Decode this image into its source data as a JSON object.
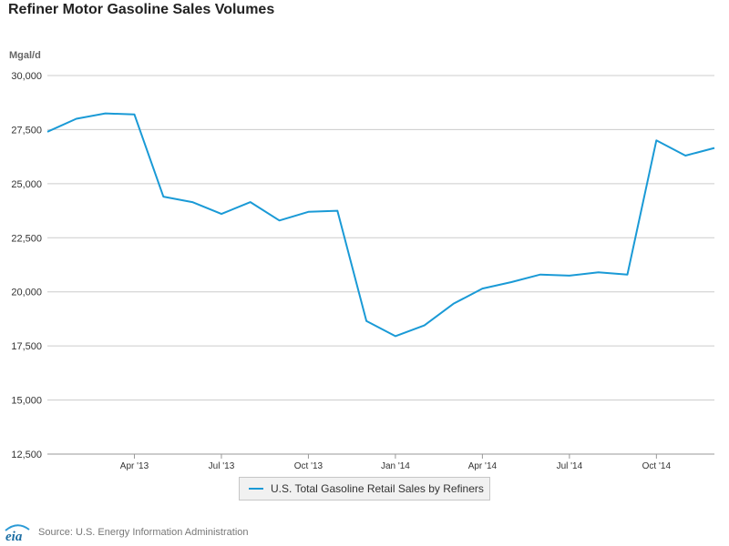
{
  "header": {
    "title": "Refiner Motor Gasoline Sales Volumes",
    "units": "Mgal/d"
  },
  "legend": {
    "label": "U.S. Total Gasoline Retail Sales by Refiners"
  },
  "footer": {
    "logo_text": "eia",
    "source": "Source: U.S. Energy Information Administration"
  },
  "colors": {
    "series": "#1a9ad6",
    "grid": "#cccccc",
    "axis": "#999999",
    "text": "#333333"
  },
  "chart_data": {
    "type": "line",
    "title": "Refiner Motor Gasoline Sales Volumes",
    "ylabel": "Mgal/d",
    "xlabel": "",
    "ylim": [
      12500,
      30000
    ],
    "yticks": [
      {
        "value": 12500,
        "label": "12,500"
      },
      {
        "value": 15000,
        "label": "15,000"
      },
      {
        "value": 17500,
        "label": "17,500"
      },
      {
        "value": 20000,
        "label": "20,000"
      },
      {
        "value": 22500,
        "label": "22,500"
      },
      {
        "value": 25000,
        "label": "25,000"
      },
      {
        "value": 27500,
        "label": "27,500"
      },
      {
        "value": 30000,
        "label": "30,000"
      }
    ],
    "x": [
      "Jan '13",
      "Feb '13",
      "Mar '13",
      "Apr '13",
      "May '13",
      "Jun '13",
      "Jul '13",
      "Aug '13",
      "Sep '13",
      "Oct '13",
      "Nov '13",
      "Dec '13",
      "Jan '14",
      "Feb '14",
      "Mar '14",
      "Apr '14",
      "May '14",
      "Jun '14",
      "Jul '14",
      "Aug '14",
      "Sep '14",
      "Oct '14",
      "Nov '14",
      "Dec '14"
    ],
    "xticks": [
      {
        "index": 3,
        "label": "Apr '13"
      },
      {
        "index": 6,
        "label": "Jul '13"
      },
      {
        "index": 9,
        "label": "Oct '13"
      },
      {
        "index": 12,
        "label": "Jan '14"
      },
      {
        "index": 15,
        "label": "Apr '14"
      },
      {
        "index": 18,
        "label": "Jul '14"
      },
      {
        "index": 21,
        "label": "Oct '14"
      }
    ],
    "series": [
      {
        "name": "U.S. Total Gasoline Retail Sales by Refiners",
        "values": [
          27400,
          28000,
          28250,
          28200,
          24400,
          24150,
          23600,
          24150,
          23300,
          23700,
          23750,
          18650,
          17950,
          18450,
          19450,
          20150,
          20450,
          20800,
          20750,
          20900,
          20800,
          27000,
          26300,
          26650
        ]
      }
    ],
    "grid": true,
    "legend_position": "bottom-center"
  }
}
